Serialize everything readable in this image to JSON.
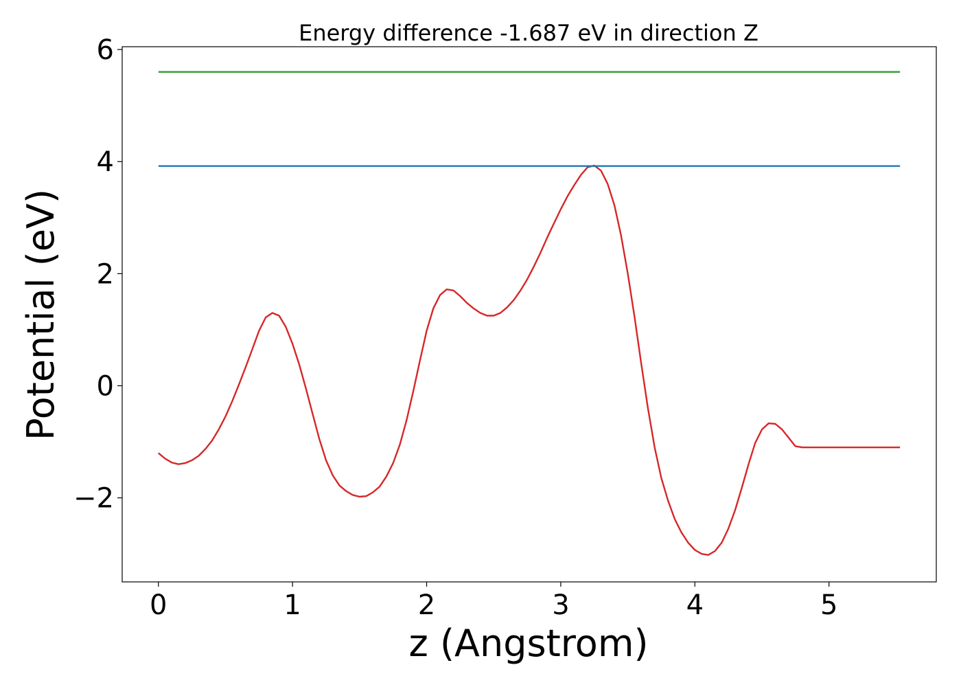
{
  "chart_data": {
    "type": "line",
    "title": "Energy difference -1.687 eV in direction Z",
    "xlabel": "z (Angstrom)",
    "ylabel": "Potential (eV)",
    "xlim": [
      -0.27,
      5.8
    ],
    "ylim": [
      -3.5,
      6.05
    ],
    "xticks": [
      0,
      1,
      2,
      3,
      4,
      5
    ],
    "xtick_labels": [
      "0",
      "1",
      "2",
      "3",
      "4",
      "5"
    ],
    "yticks": [
      -2,
      0,
      2,
      4,
      6
    ],
    "ytick_labels": [
      "−2",
      "0",
      "2",
      "4",
      "6"
    ],
    "grid": false,
    "series": [
      {
        "color": "#d62728",
        "x": [
          0.0,
          0.05,
          0.1,
          0.15,
          0.2,
          0.25,
          0.3,
          0.35,
          0.4,
          0.45,
          0.5,
          0.55,
          0.6,
          0.65,
          0.7,
          0.75,
          0.8,
          0.85,
          0.9,
          0.95,
          1.0,
          1.05,
          1.1,
          1.15,
          1.2,
          1.25,
          1.3,
          1.35,
          1.4,
          1.45,
          1.5,
          1.55,
          1.6,
          1.65,
          1.7,
          1.75,
          1.8,
          1.85,
          1.9,
          1.95,
          2.0,
          2.05,
          2.1,
          2.15,
          2.2,
          2.25,
          2.3,
          2.35,
          2.4,
          2.45,
          2.5,
          2.55,
          2.6,
          2.65,
          2.7,
          2.75,
          2.8,
          2.85,
          2.9,
          2.95,
          3.0,
          3.05,
          3.1,
          3.15,
          3.2,
          3.25,
          3.3,
          3.35,
          3.4,
          3.45,
          3.5,
          3.55,
          3.6,
          3.65,
          3.7,
          3.75,
          3.8,
          3.85,
          3.9,
          3.95,
          4.0,
          4.05,
          4.1,
          4.15,
          4.2,
          4.25,
          4.3,
          4.35,
          4.4,
          4.45,
          4.5,
          4.55,
          4.6,
          4.65,
          4.7,
          4.75,
          4.8,
          4.85,
          4.9,
          4.95,
          5.0,
          5.05,
          5.1,
          5.15,
          5.2,
          5.25,
          5.3,
          5.35,
          5.4,
          5.45,
          5.5,
          5.53
        ],
        "y": [
          -1.2,
          -1.3,
          -1.37,
          -1.4,
          -1.38,
          -1.33,
          -1.25,
          -1.13,
          -0.98,
          -0.78,
          -0.55,
          -0.28,
          0.02,
          0.33,
          0.65,
          0.98,
          1.22,
          1.3,
          1.25,
          1.05,
          0.75,
          0.38,
          -0.05,
          -0.5,
          -0.95,
          -1.33,
          -1.6,
          -1.78,
          -1.88,
          -1.95,
          -1.98,
          -1.97,
          -1.9,
          -1.8,
          -1.62,
          -1.38,
          -1.05,
          -0.62,
          -0.1,
          0.45,
          0.98,
          1.38,
          1.62,
          1.72,
          1.7,
          1.6,
          1.48,
          1.38,
          1.3,
          1.25,
          1.25,
          1.3,
          1.4,
          1.53,
          1.7,
          1.9,
          2.13,
          2.38,
          2.65,
          2.9,
          3.15,
          3.38,
          3.58,
          3.76,
          3.9,
          3.93,
          3.84,
          3.6,
          3.22,
          2.68,
          2.0,
          1.23,
          0.4,
          -0.4,
          -1.1,
          -1.65,
          -2.05,
          -2.38,
          -2.62,
          -2.8,
          -2.93,
          -3.0,
          -3.02,
          -2.95,
          -2.8,
          -2.55,
          -2.22,
          -1.82,
          -1.4,
          -1.02,
          -0.78,
          -0.67,
          -0.68,
          -0.78,
          -0.93,
          -1.08,
          -1.1,
          -1.1,
          -1.1,
          -1.1,
          -1.1,
          -1.1,
          -1.1,
          -1.1,
          -1.1,
          -1.1,
          -1.1,
          -1.1,
          -1.1,
          -1.1,
          -1.1,
          -1.1
        ]
      },
      {
        "color": "#1f77b4",
        "x": [
          0.0,
          5.53
        ],
        "y": [
          3.92,
          3.92
        ]
      },
      {
        "color": "#2ca02c",
        "x": [
          0.0,
          5.53
        ],
        "y": [
          5.6,
          5.6
        ]
      }
    ]
  }
}
